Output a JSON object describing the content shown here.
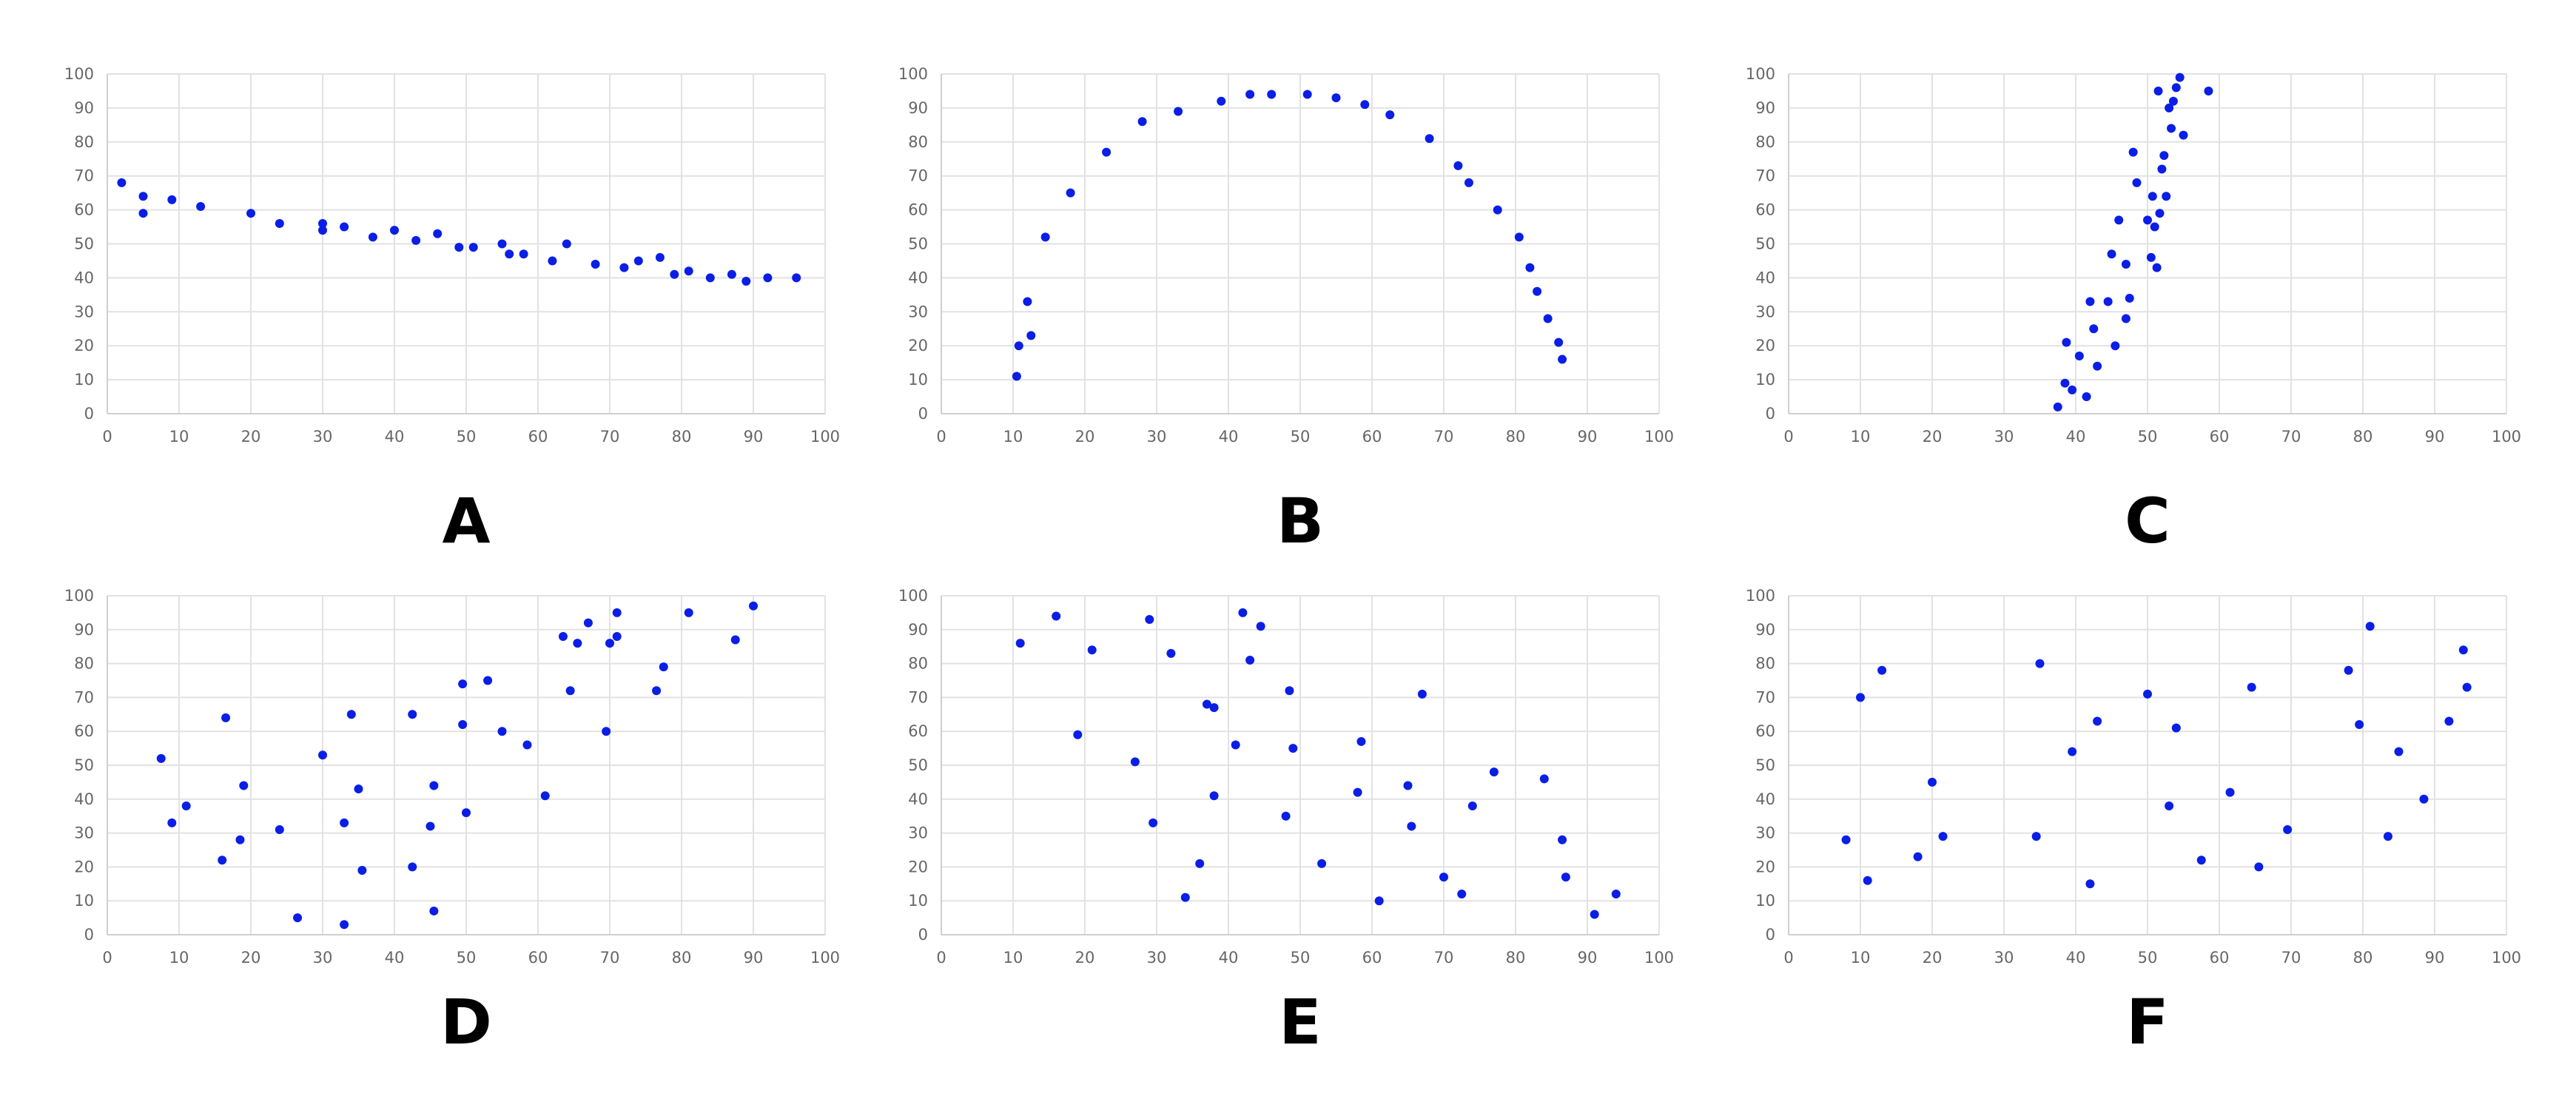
{
  "chart_data": [
    {
      "type": "scatter",
      "label": "A",
      "xlim": [
        0,
        100
      ],
      "ylim": [
        0,
        100
      ],
      "xticks": [
        0,
        10,
        20,
        30,
        40,
        50,
        60,
        70,
        80,
        90,
        100
      ],
      "yticks": [
        0,
        10,
        20,
        30,
        40,
        50,
        60,
        70,
        80,
        90,
        100
      ],
      "grid": true,
      "points": [
        [
          2,
          68
        ],
        [
          5,
          64
        ],
        [
          5,
          59
        ],
        [
          9,
          63
        ],
        [
          13,
          61
        ],
        [
          20,
          59
        ],
        [
          24,
          56
        ],
        [
          30,
          56
        ],
        [
          30,
          54
        ],
        [
          33,
          55
        ],
        [
          37,
          52
        ],
        [
          40,
          54
        ],
        [
          43,
          51
        ],
        [
          46,
          53
        ],
        [
          49,
          49
        ],
        [
          51,
          49
        ],
        [
          55,
          50
        ],
        [
          56,
          47
        ],
        [
          58,
          47
        ],
        [
          62,
          45
        ],
        [
          64,
          50
        ],
        [
          68,
          44
        ],
        [
          72,
          43
        ],
        [
          74,
          45
        ],
        [
          77,
          46
        ],
        [
          79,
          41
        ],
        [
          81,
          42
        ],
        [
          84,
          40
        ],
        [
          87,
          41
        ],
        [
          89,
          39
        ],
        [
          92,
          40
        ],
        [
          96,
          40
        ]
      ]
    },
    {
      "type": "scatter",
      "label": "B",
      "xlim": [
        0,
        100
      ],
      "ylim": [
        0,
        100
      ],
      "xticks": [
        0,
        10,
        20,
        30,
        40,
        50,
        60,
        70,
        80,
        90,
        100
      ],
      "yticks": [
        0,
        10,
        20,
        30,
        40,
        50,
        60,
        70,
        80,
        90,
        100
      ],
      "grid": true,
      "points": [
        [
          10.5,
          11
        ],
        [
          10.8,
          20
        ],
        [
          12,
          33
        ],
        [
          12.5,
          23
        ],
        [
          14.5,
          52
        ],
        [
          18,
          65
        ],
        [
          23,
          77
        ],
        [
          28,
          86
        ],
        [
          33,
          89
        ],
        [
          39,
          92
        ],
        [
          43,
          94
        ],
        [
          46,
          94
        ],
        [
          51,
          94
        ],
        [
          55,
          93
        ],
        [
          59,
          91
        ],
        [
          62.5,
          88
        ],
        [
          68,
          81
        ],
        [
          72,
          73
        ],
        [
          73.5,
          68
        ],
        [
          77.5,
          60
        ],
        [
          80.5,
          52
        ],
        [
          82,
          43
        ],
        [
          83,
          36
        ],
        [
          84.5,
          28
        ],
        [
          86,
          21
        ],
        [
          86.5,
          16
        ]
      ]
    },
    {
      "type": "scatter",
      "label": "C",
      "xlim": [
        0,
        100
      ],
      "ylim": [
        0,
        100
      ],
      "xticks": [
        0,
        10,
        20,
        30,
        40,
        50,
        60,
        70,
        80,
        90,
        100
      ],
      "yticks": [
        0,
        10,
        20,
        30,
        40,
        50,
        60,
        70,
        80,
        90,
        100
      ],
      "grid": true,
      "points": [
        [
          37.5,
          2
        ],
        [
          38.5,
          9
        ],
        [
          38.7,
          21
        ],
        [
          39.5,
          7
        ],
        [
          40.5,
          17
        ],
        [
          41.5,
          5
        ],
        [
          42,
          33
        ],
        [
          42.5,
          25
        ],
        [
          43,
          14
        ],
        [
          44.5,
          33
        ],
        [
          45,
          47
        ],
        [
          45.5,
          20
        ],
        [
          46,
          57
        ],
        [
          47,
          44
        ],
        [
          47,
          28
        ],
        [
          47.5,
          34
        ],
        [
          48,
          77
        ],
        [
          48.5,
          68
        ],
        [
          50,
          57
        ],
        [
          50.5,
          46
        ],
        [
          50.7,
          64
        ],
        [
          51,
          55
        ],
        [
          51.3,
          43
        ],
        [
          51.5,
          95
        ],
        [
          51.7,
          59
        ],
        [
          52,
          72
        ],
        [
          52.3,
          76
        ],
        [
          52.6,
          64
        ],
        [
          53,
          90
        ],
        [
          53.3,
          84
        ],
        [
          53.6,
          92
        ],
        [
          54,
          96
        ],
        [
          54.5,
          99
        ],
        [
          55,
          82
        ],
        [
          58.5,
          95
        ]
      ]
    },
    {
      "type": "scatter",
      "label": "D",
      "xlim": [
        0,
        100
      ],
      "ylim": [
        0,
        100
      ],
      "xticks": [
        0,
        10,
        20,
        30,
        40,
        50,
        60,
        70,
        80,
        90,
        100
      ],
      "yticks": [
        0,
        10,
        20,
        30,
        40,
        50,
        60,
        70,
        80,
        90,
        100
      ],
      "grid": true,
      "points": [
        [
          7.5,
          52
        ],
        [
          9,
          33
        ],
        [
          11,
          38
        ],
        [
          16,
          22
        ],
        [
          16.5,
          64
        ],
        [
          18.5,
          28
        ],
        [
          19,
          44
        ],
        [
          24,
          31
        ],
        [
          26.5,
          5
        ],
        [
          30,
          53
        ],
        [
          33,
          3
        ],
        [
          33,
          33
        ],
        [
          34,
          65
        ],
        [
          35,
          43
        ],
        [
          35.5,
          19
        ],
        [
          42.5,
          65
        ],
        [
          42.5,
          20
        ],
        [
          45,
          32
        ],
        [
          45.5,
          44
        ],
        [
          45.5,
          7
        ],
        [
          49.5,
          74
        ],
        [
          49.5,
          62
        ],
        [
          50,
          36
        ],
        [
          53,
          75
        ],
        [
          55,
          60
        ],
        [
          58.5,
          56
        ],
        [
          61,
          41
        ],
        [
          63.5,
          88
        ],
        [
          64.5,
          72
        ],
        [
          65.5,
          86
        ],
        [
          67,
          92
        ],
        [
          69.5,
          60
        ],
        [
          70,
          86
        ],
        [
          71,
          95
        ],
        [
          71,
          88
        ],
        [
          76.5,
          72
        ],
        [
          77.5,
          79
        ],
        [
          81,
          95
        ],
        [
          87.5,
          87
        ],
        [
          90,
          97
        ]
      ]
    },
    {
      "type": "scatter",
      "label": "E",
      "xlim": [
        0,
        100
      ],
      "ylim": [
        0,
        100
      ],
      "xticks": [
        0,
        10,
        20,
        30,
        40,
        50,
        60,
        70,
        80,
        90,
        100
      ],
      "yticks": [
        0,
        10,
        20,
        30,
        40,
        50,
        60,
        70,
        80,
        90,
        100
      ],
      "grid": true,
      "points": [
        [
          11,
          86
        ],
        [
          16,
          94
        ],
        [
          19,
          59
        ],
        [
          21,
          84
        ],
        [
          27,
          51
        ],
        [
          29,
          93
        ],
        [
          29.5,
          33
        ],
        [
          32,
          83
        ],
        [
          34,
          11
        ],
        [
          36,
          21
        ],
        [
          37,
          68
        ],
        [
          38,
          41
        ],
        [
          38,
          67
        ],
        [
          41,
          56
        ],
        [
          42,
          95
        ],
        [
          43,
          81
        ],
        [
          44.5,
          91
        ],
        [
          48,
          35
        ],
        [
          48.5,
          72
        ],
        [
          49,
          55
        ],
        [
          53,
          21
        ],
        [
          58,
          42
        ],
        [
          58.5,
          57
        ],
        [
          61,
          10
        ],
        [
          65,
          44
        ],
        [
          65.5,
          32
        ],
        [
          67,
          71
        ],
        [
          70,
          17
        ],
        [
          72.5,
          12
        ],
        [
          74,
          38
        ],
        [
          77,
          48
        ],
        [
          84,
          46
        ],
        [
          86.5,
          28
        ],
        [
          87,
          17
        ],
        [
          91,
          6
        ],
        [
          94,
          12
        ]
      ]
    },
    {
      "type": "scatter",
      "label": "F",
      "xlim": [
        0,
        100
      ],
      "ylim": [
        0,
        100
      ],
      "xticks": [
        0,
        10,
        20,
        30,
        40,
        50,
        60,
        70,
        80,
        90,
        100
      ],
      "yticks": [
        0,
        10,
        20,
        30,
        40,
        50,
        60,
        70,
        80,
        90,
        100
      ],
      "grid": true,
      "points": [
        [
          8,
          28
        ],
        [
          10,
          70
        ],
        [
          11,
          16
        ],
        [
          13,
          78
        ],
        [
          18,
          23
        ],
        [
          20,
          45
        ],
        [
          21.5,
          29
        ],
        [
          34.5,
          29
        ],
        [
          35,
          80
        ],
        [
          39.5,
          54
        ],
        [
          42,
          15
        ],
        [
          43,
          63
        ],
        [
          50,
          71
        ],
        [
          53,
          38
        ],
        [
          54,
          61
        ],
        [
          57.5,
          22
        ],
        [
          61.5,
          42
        ],
        [
          64.5,
          73
        ],
        [
          65.5,
          20
        ],
        [
          69.5,
          31
        ],
        [
          78,
          78
        ],
        [
          79.5,
          62
        ],
        [
          81,
          91
        ],
        [
          83.5,
          29
        ],
        [
          85,
          54
        ],
        [
          88.5,
          40
        ],
        [
          92,
          63
        ],
        [
          94,
          84
        ],
        [
          94.5,
          73
        ]
      ]
    }
  ]
}
